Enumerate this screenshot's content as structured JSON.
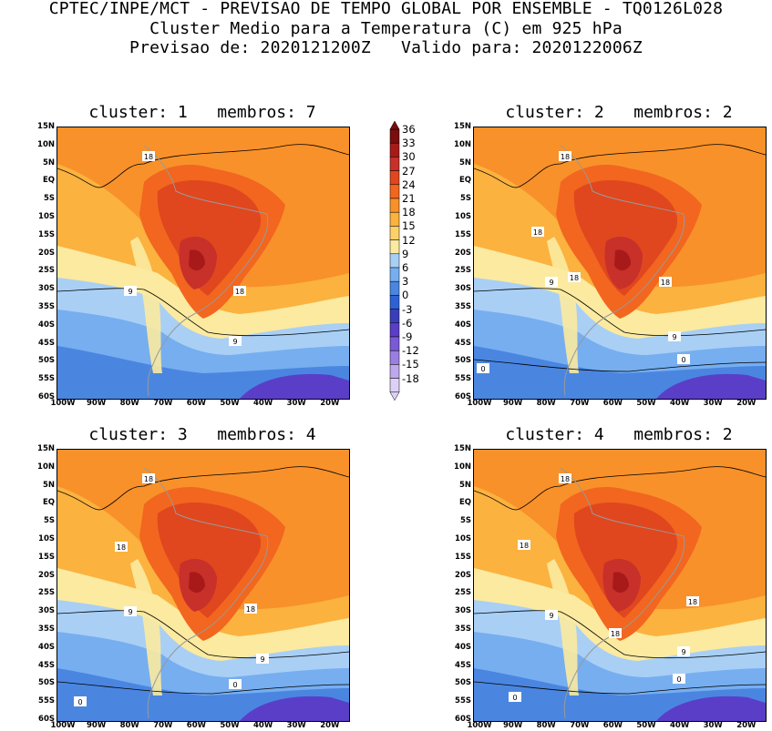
{
  "header": {
    "line1": "CPTEC/INPE/MCT - PREVISAO DE TEMPO GLOBAL POR ENSEMBLE - TQ0126L028",
    "line2": "Cluster Medio para a Temperatura (C) em 925 hPa",
    "line3": "Previsao de: 2020121200Z   Valido para: 2020122006Z"
  },
  "panels": [
    {
      "title": "cluster: 1   membros: 7"
    },
    {
      "title": "cluster: 2   membros: 2"
    },
    {
      "title": "cluster: 3   membros: 4"
    },
    {
      "title": "cluster: 4   membros: 2"
    }
  ],
  "lat_ticks": [
    "15N",
    "10N",
    "5N",
    "EQ",
    "5S",
    "10S",
    "15S",
    "20S",
    "25S",
    "30S",
    "35S",
    "40S",
    "45S",
    "50S",
    "55S",
    "60S"
  ],
  "lon_ticks": [
    "100W",
    "90W",
    "80W",
    "70W",
    "60W",
    "50W",
    "40W",
    "30W",
    "20W"
  ],
  "colorbar": {
    "labels": [
      "36",
      "33",
      "30",
      "27",
      "24",
      "21",
      "18",
      "15",
      "12",
      "9",
      "6",
      "3",
      "0",
      "-3",
      "-6",
      "-9",
      "-12",
      "-15",
      "-18"
    ],
    "colors": [
      "#7a0d0d",
      "#a81a1a",
      "#c8302a",
      "#e0471e",
      "#f2661f",
      "#f8912a",
      "#fbb23f",
      "#fdd16a",
      "#fbeaa0",
      "#a9cff5",
      "#76aef0",
      "#4a86e0",
      "#2e62d4",
      "#3a3fb8",
      "#5a3ec8",
      "#7a5ad6",
      "#9b7fe0",
      "#bea8ec",
      "#ddd0f6"
    ]
  },
  "contour_labels": {
    "p1": [
      "18",
      "9",
      "18",
      "9"
    ],
    "p2": [
      "18",
      "18",
      "9",
      "18",
      "18",
      "9",
      "0",
      "0"
    ],
    "p3": [
      "18",
      "18",
      "9",
      "18",
      "9",
      "0",
      "0"
    ],
    "p4": [
      "18",
      "18",
      "9",
      "18",
      "18",
      "9",
      "0",
      "0"
    ]
  }
}
